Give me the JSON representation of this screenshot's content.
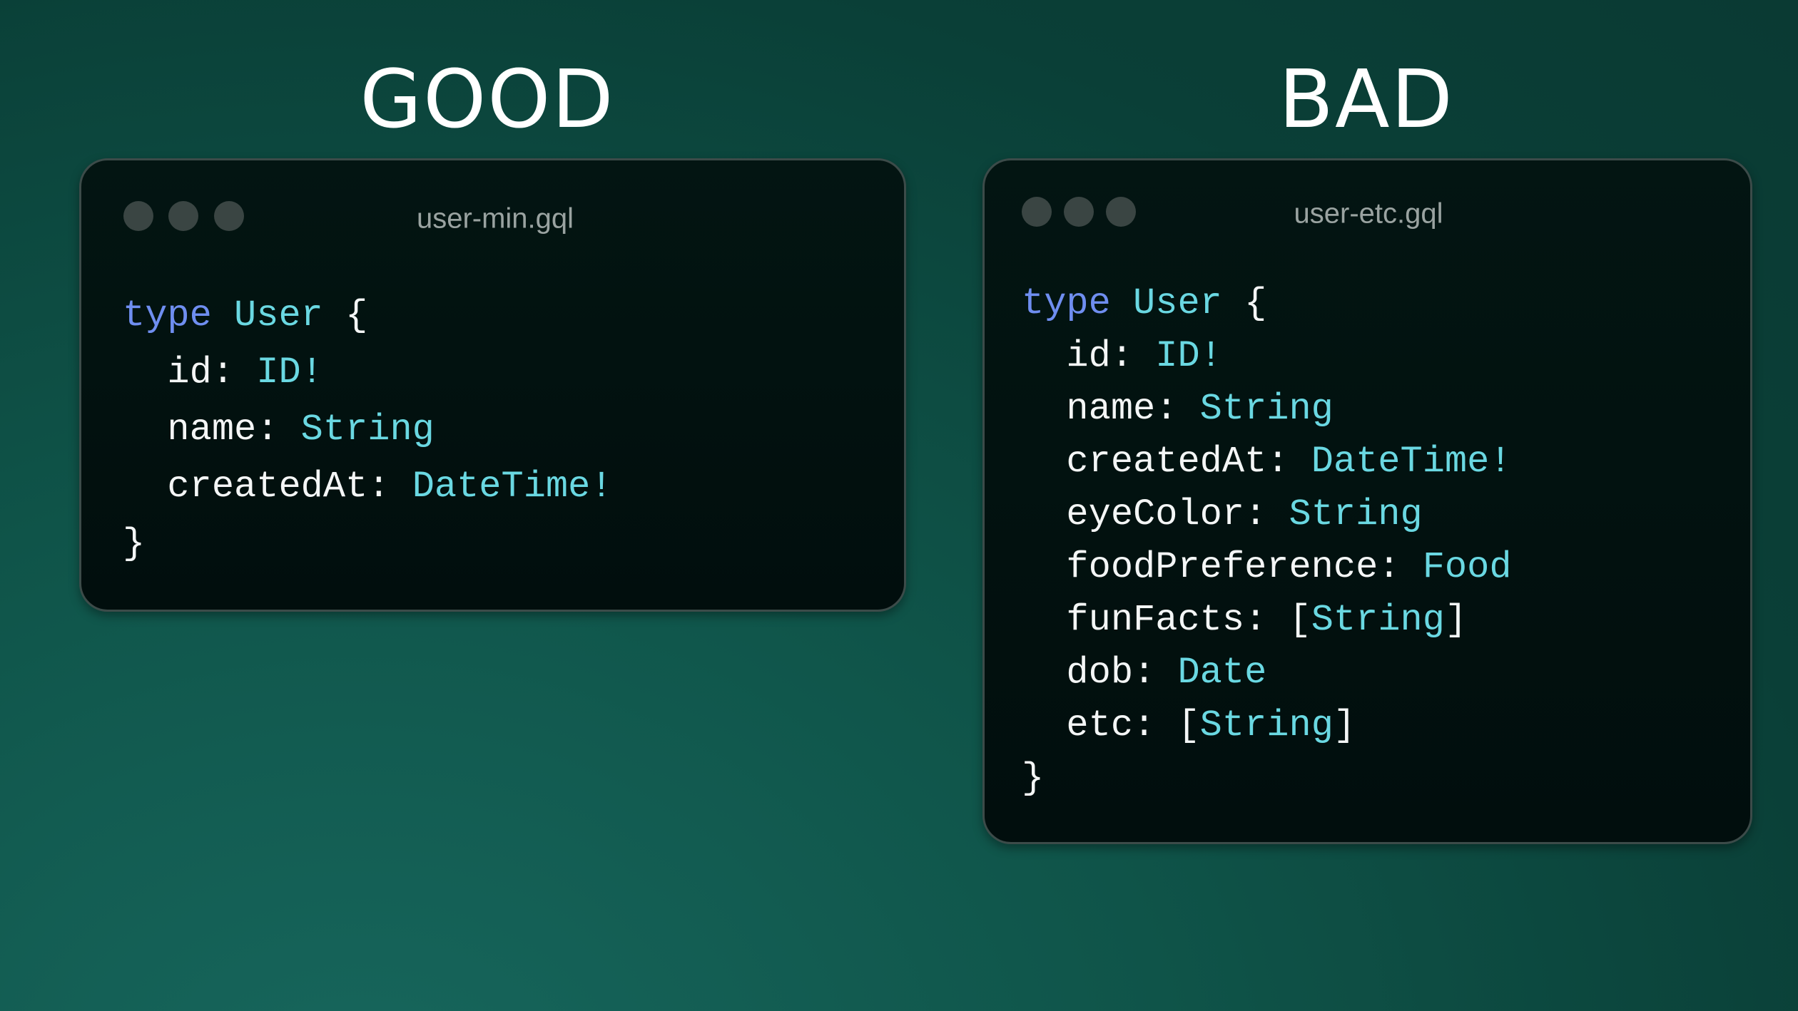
{
  "good": {
    "heading": "GOOD",
    "filename": "user-min.gql",
    "code": {
      "keyword": "type",
      "type_name": "User",
      "open": "{",
      "close": "}",
      "fields": [
        {
          "name": "id: ",
          "prefix": "",
          "type": "ID!",
          "suffix": ""
        },
        {
          "name": "name: ",
          "prefix": "",
          "type": "String",
          "suffix": ""
        },
        {
          "name": "createdAt: ",
          "prefix": "",
          "type": "DateTime!",
          "suffix": ""
        }
      ]
    }
  },
  "bad": {
    "heading": "BAD",
    "filename": "user-etc.gql",
    "code": {
      "keyword": "type",
      "type_name": "User",
      "open": "{",
      "close": "}",
      "fields": [
        {
          "name": "id: ",
          "prefix": "",
          "type": "ID!",
          "suffix": ""
        },
        {
          "name": "name: ",
          "prefix": "",
          "type": "String",
          "suffix": ""
        },
        {
          "name": "createdAt: ",
          "prefix": "",
          "type": "DateTime!",
          "suffix": ""
        },
        {
          "name": "eyeColor: ",
          "prefix": "",
          "type": "String",
          "suffix": ""
        },
        {
          "name": "foodPreference: ",
          "prefix": "",
          "type": "Food",
          "suffix": ""
        },
        {
          "name": "funFacts: ",
          "prefix": "[",
          "type": "String",
          "suffix": "]"
        },
        {
          "name": "dob: ",
          "prefix": "",
          "type": "Date",
          "suffix": ""
        },
        {
          "name": "etc: ",
          "prefix": "[",
          "type": "String",
          "suffix": "]"
        }
      ]
    }
  },
  "colors": {
    "keyword": "#6f8ef0",
    "type": "#6ad8e2",
    "text": "#f4f6f6",
    "card_bg": "#020f0e",
    "window_dot": "#3a4543"
  }
}
